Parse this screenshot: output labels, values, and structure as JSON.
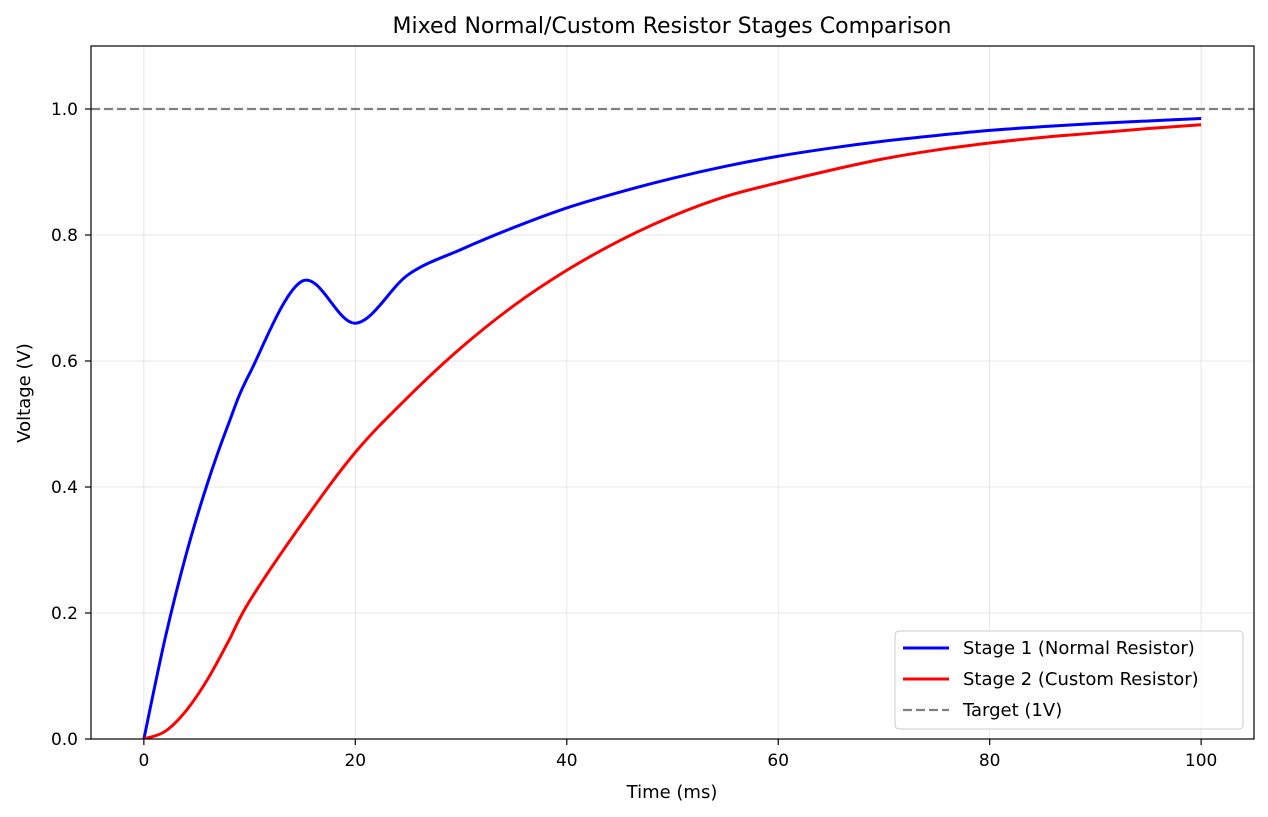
{
  "chart_data": {
    "type": "line",
    "title": "Mixed Normal/Custom Resistor Stages Comparison",
    "xlabel": "Time (ms)",
    "ylabel": "Voltage (V)",
    "xlim": [
      -5,
      105
    ],
    "ylim": [
      0,
      1.1
    ],
    "x_ticks": [
      0,
      20,
      40,
      60,
      80,
      100
    ],
    "x_tick_labels": [
      "0",
      "20",
      "40",
      "60",
      "80",
      "100"
    ],
    "y_ticks": [
      0,
      0.2,
      0.4,
      0.6,
      0.8,
      1.0
    ],
    "y_tick_labels": [
      "0.0",
      "0.2",
      "0.4",
      "0.6",
      "0.8",
      "1.0"
    ],
    "grid": true,
    "legend_position": "bottom-right",
    "series": [
      {
        "name": "Stage 1 (Normal Resistor)",
        "color": "#0000ff",
        "style": "solid",
        "x": [
          0,
          2,
          4,
          6,
          8,
          10,
          15,
          20,
          25,
          30,
          35,
          40,
          45,
          50,
          55,
          60,
          65,
          70,
          75,
          80,
          85,
          90,
          95,
          100
        ],
        "y": [
          0,
          0.159,
          0.293,
          0.405,
          0.5,
          0.58,
          0.727,
          0.66,
          0.737,
          0.777,
          0.812,
          0.843,
          0.868,
          0.89,
          0.909,
          0.925,
          0.938,
          0.949,
          0.958,
          0.966,
          0.972,
          0.977,
          0.981,
          0.985
        ]
      },
      {
        "name": "Stage 2 (Custom Resistor)",
        "color": "#ff0000",
        "style": "solid",
        "x": [
          0,
          2,
          4,
          6,
          8,
          10,
          15,
          20,
          25,
          30,
          35,
          40,
          45,
          50,
          55,
          60,
          65,
          70,
          75,
          80,
          85,
          90,
          95,
          100
        ],
        "y": [
          0,
          0.012,
          0.045,
          0.094,
          0.155,
          0.219,
          0.343,
          0.455,
          0.543,
          0.621,
          0.688,
          0.744,
          0.791,
          0.83,
          0.861,
          0.883,
          0.903,
          0.921,
          0.935,
          0.946,
          0.955,
          0.962,
          0.969,
          0.975
        ]
      },
      {
        "name": "Target (1V)",
        "color": "#808080",
        "style": "dashed",
        "x": [
          -5,
          105
        ],
        "y": [
          1.0,
          1.0
        ]
      }
    ]
  }
}
